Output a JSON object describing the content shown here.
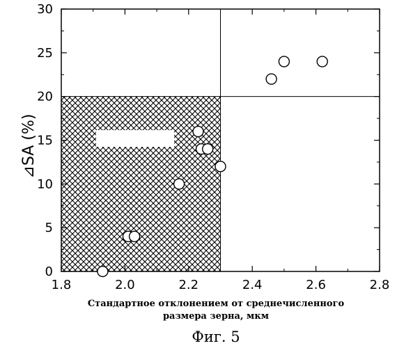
{
  "chart_data": {
    "type": "scatter",
    "xlabel_line1": "Стандартное отклонением от среднечисленного",
    "xlabel_line2": "размера зерна, мкм",
    "ylabel": "⊿SA (%)",
    "xlim": [
      1.8,
      2.8
    ],
    "ylim": [
      0,
      30
    ],
    "xticks": [
      "1.8",
      "2.0",
      "2.2",
      "2.4",
      "2.6",
      "2.8"
    ],
    "yticks": [
      "0",
      "5",
      "10",
      "15",
      "20",
      "25",
      "30"
    ],
    "grid": false,
    "reference_lines": {
      "x": 2.3,
      "y": 20
    },
    "shaded_region": {
      "x": [
        1.8,
        2.3
      ],
      "y": [
        0,
        20
      ]
    },
    "points": [
      {
        "x": 1.93,
        "y": 0
      },
      {
        "x": 2.01,
        "y": 4
      },
      {
        "x": 2.03,
        "y": 4
      },
      {
        "x": 2.17,
        "y": 10
      },
      {
        "x": 2.23,
        "y": 16
      },
      {
        "x": 2.24,
        "y": 14
      },
      {
        "x": 2.26,
        "y": 14
      },
      {
        "x": 2.3,
        "y": 12
      },
      {
        "x": 2.46,
        "y": 22
      },
      {
        "x": 2.5,
        "y": 24
      },
      {
        "x": 2.62,
        "y": 24
      }
    ]
  },
  "caption": "Фиг. 5"
}
